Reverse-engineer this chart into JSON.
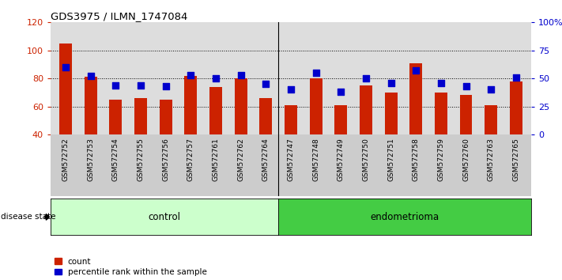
{
  "title": "GDS3975 / ILMN_1747084",
  "samples": [
    "GSM572752",
    "GSM572753",
    "GSM572754",
    "GSM572755",
    "GSM572756",
    "GSM572757",
    "GSM572761",
    "GSM572762",
    "GSM572764",
    "GSM572747",
    "GSM572748",
    "GSM572749",
    "GSM572750",
    "GSM572751",
    "GSM572758",
    "GSM572759",
    "GSM572760",
    "GSM572763",
    "GSM572765"
  ],
  "counts": [
    105,
    81,
    65,
    66,
    65,
    82,
    74,
    80,
    66,
    61,
    80,
    61,
    75,
    70,
    91,
    70,
    68,
    61,
    78
  ],
  "percentiles": [
    60,
    52,
    44,
    44,
    43,
    53,
    50,
    53,
    45,
    40,
    55,
    38,
    50,
    46,
    57,
    46,
    43,
    40,
    51
  ],
  "control_count": 9,
  "endometrioma_count": 10,
  "ylim_left": [
    40,
    120
  ],
  "ylim_right": [
    0,
    100
  ],
  "yticks_left": [
    40,
    60,
    80,
    100,
    120
  ],
  "yticks_right": [
    0,
    25,
    50,
    75,
    100
  ],
  "ytick_labels_right": [
    "0",
    "25",
    "50",
    "75",
    "100%"
  ],
  "bar_color": "#cc2200",
  "dot_color": "#0000cc",
  "control_bg": "#ccffcc",
  "endometrioma_bg": "#44cc44",
  "plot_bg": "#dddddd",
  "bar_width": 0.5,
  "dot_size": 28,
  "dot_marker": "s"
}
